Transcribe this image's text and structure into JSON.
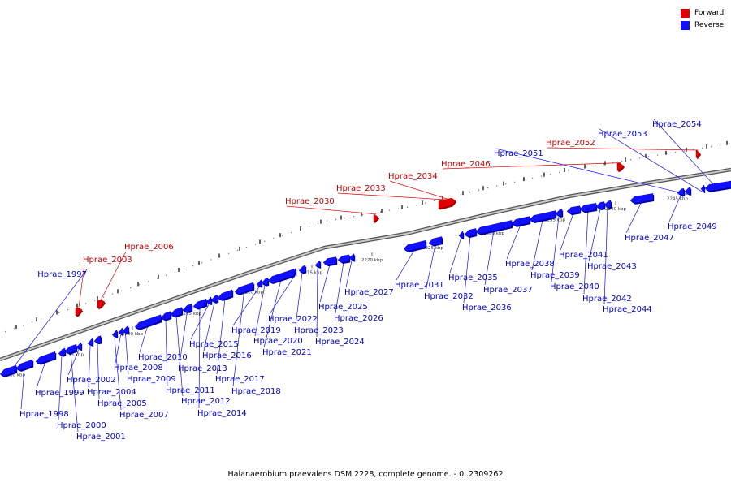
{
  "title": "Halanaerobium praevalens DSM 2228, complete genome. - 0..2309262",
  "colors": {
    "forward": "#e00000",
    "reverse": "#1010ff",
    "backbone": "#7a7a7a"
  },
  "legend": [
    {
      "label": "Forward",
      "strand": "forward"
    },
    {
      "label": "Reverse",
      "strand": "reverse"
    }
  ],
  "ticks": [
    "2190 kbp",
    "2195 kbp",
    "2200 kbp",
    "2205 kbp",
    "2210 kbp",
    "2215 kbp",
    "2220 kbp",
    "2225 kbp",
    "2230 kbp",
    "2235 kbp",
    "2240 kbp",
    "2245 kbp"
  ],
  "genes": [
    {
      "name": "Hprae_1997",
      "strand": "reverse"
    },
    {
      "name": "Hprae_1998",
      "strand": "reverse"
    },
    {
      "name": "Hprae_1999",
      "strand": "reverse"
    },
    {
      "name": "Hprae_2000",
      "strand": "reverse"
    },
    {
      "name": "Hprae_2001",
      "strand": "reverse"
    },
    {
      "name": "Hprae_2002",
      "strand": "reverse"
    },
    {
      "name": "Hprae_2003",
      "strand": "forward"
    },
    {
      "name": "Hprae_2004",
      "strand": "reverse"
    },
    {
      "name": "Hprae_2005",
      "strand": "reverse"
    },
    {
      "name": "Hprae_2006",
      "strand": "forward"
    },
    {
      "name": "Hprae_2007",
      "strand": "reverse"
    },
    {
      "name": "Hprae_2008",
      "strand": "reverse"
    },
    {
      "name": "Hprae_2009",
      "strand": "reverse"
    },
    {
      "name": "Hprae_2010",
      "strand": "reverse"
    },
    {
      "name": "Hprae_2011",
      "strand": "reverse"
    },
    {
      "name": "Hprae_2012",
      "strand": "reverse"
    },
    {
      "name": "Hprae_2013",
      "strand": "reverse"
    },
    {
      "name": "Hprae_2014",
      "strand": "reverse"
    },
    {
      "name": "Hprae_2015",
      "strand": "reverse"
    },
    {
      "name": "Hprae_2016",
      "strand": "reverse"
    },
    {
      "name": "Hprae_2017",
      "strand": "reverse"
    },
    {
      "name": "Hprae_2018",
      "strand": "reverse"
    },
    {
      "name": "Hprae_2019",
      "strand": "reverse"
    },
    {
      "name": "Hprae_2020",
      "strand": "reverse"
    },
    {
      "name": "Hprae_2021",
      "strand": "reverse"
    },
    {
      "name": "Hprae_2022",
      "strand": "reverse"
    },
    {
      "name": "Hprae_2023",
      "strand": "reverse"
    },
    {
      "name": "Hprae_2024",
      "strand": "reverse"
    },
    {
      "name": "Hprae_2025",
      "strand": "reverse"
    },
    {
      "name": "Hprae_2026",
      "strand": "reverse"
    },
    {
      "name": "Hprae_2027",
      "strand": "reverse"
    },
    {
      "name": "Hprae_2030",
      "strand": "forward"
    },
    {
      "name": "Hprae_2031",
      "strand": "reverse"
    },
    {
      "name": "Hprae_2032",
      "strand": "reverse"
    },
    {
      "name": "Hprae_2033",
      "strand": "forward"
    },
    {
      "name": "Hprae_2034",
      "strand": "forward"
    },
    {
      "name": "Hprae_2035",
      "strand": "reverse"
    },
    {
      "name": "Hprae_2036",
      "strand": "reverse"
    },
    {
      "name": "Hprae_2037",
      "strand": "reverse"
    },
    {
      "name": "Hprae_2038",
      "strand": "reverse"
    },
    {
      "name": "Hprae_2039",
      "strand": "reverse"
    },
    {
      "name": "Hprae_2040",
      "strand": "reverse"
    },
    {
      "name": "Hprae_2041",
      "strand": "reverse"
    },
    {
      "name": "Hprae_2042",
      "strand": "reverse"
    },
    {
      "name": "Hprae_2043",
      "strand": "reverse"
    },
    {
      "name": "Hprae_2044",
      "strand": "reverse"
    },
    {
      "name": "Hprae_2046",
      "strand": "forward"
    },
    {
      "name": "Hprae_2047",
      "strand": "reverse"
    },
    {
      "name": "Hprae_2049",
      "strand": "reverse"
    },
    {
      "name": "Hprae_2051",
      "strand": "reverse"
    },
    {
      "name": "Hprae_2052",
      "strand": "forward"
    },
    {
      "name": "Hprae_2053",
      "strand": "reverse"
    },
    {
      "name": "Hprae_2054",
      "strand": "reverse"
    }
  ]
}
